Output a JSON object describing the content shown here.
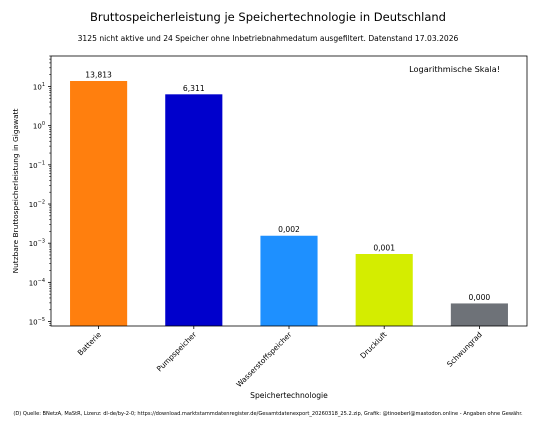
{
  "chart_data": {
    "type": "bar",
    "title": "Bruttospeicherleistung je Speichertechnologie in Deutschland",
    "subtitle": "3125 nicht aktive und 24 Speicher ohne Inbetriebnahmedatum ausgefiltert. Datenstand 17.03.2026",
    "xlabel": "Speichertechnologie",
    "ylabel": "Nutzbare Bruttospeicherleistung in Gigawatt",
    "annotation": "Logarithmische Skala!",
    "y_scale": "log",
    "ylim": [
      7.7e-06,
      60
    ],
    "yticks": [
      {
        "value": 10,
        "base": "10",
        "exp": "1"
      },
      {
        "value": 1,
        "base": "10",
        "exp": "0"
      },
      {
        "value": 0.1,
        "base": "10",
        "exp": "−1"
      },
      {
        "value": 0.01,
        "base": "10",
        "exp": "−2"
      },
      {
        "value": 0.001,
        "base": "10",
        "exp": "−3"
      },
      {
        "value": 0.0001,
        "base": "10",
        "exp": "−4"
      },
      {
        "value": 1e-05,
        "base": "10",
        "exp": "−5"
      }
    ],
    "categories": [
      "Batterie",
      "Pumpspeicher",
      "Wasserstoffspeicher",
      "Druckluft",
      "Schwungrad"
    ],
    "values": [
      13.813,
      6.311,
      0.00155,
      0.00053,
      2.9e-05
    ],
    "value_labels": [
      "13,813",
      "6,311",
      "0,002",
      "0,001",
      "0,000"
    ],
    "colors": [
      "#ff7f0e",
      "#0000cc",
      "#1e90ff",
      "#d4ed00",
      "#6e7278"
    ],
    "grid": false,
    "footer": "(D) Quelle: BNetzA, MaStR, Lizenz: dl-de/by-2-0; https://download.marktstammdatenregister.de/Gesamtdatenexport_20260318_25.2.zip, Grafik: @tinoeberl@mastodon.online - Angaben ohne Gewähr."
  }
}
